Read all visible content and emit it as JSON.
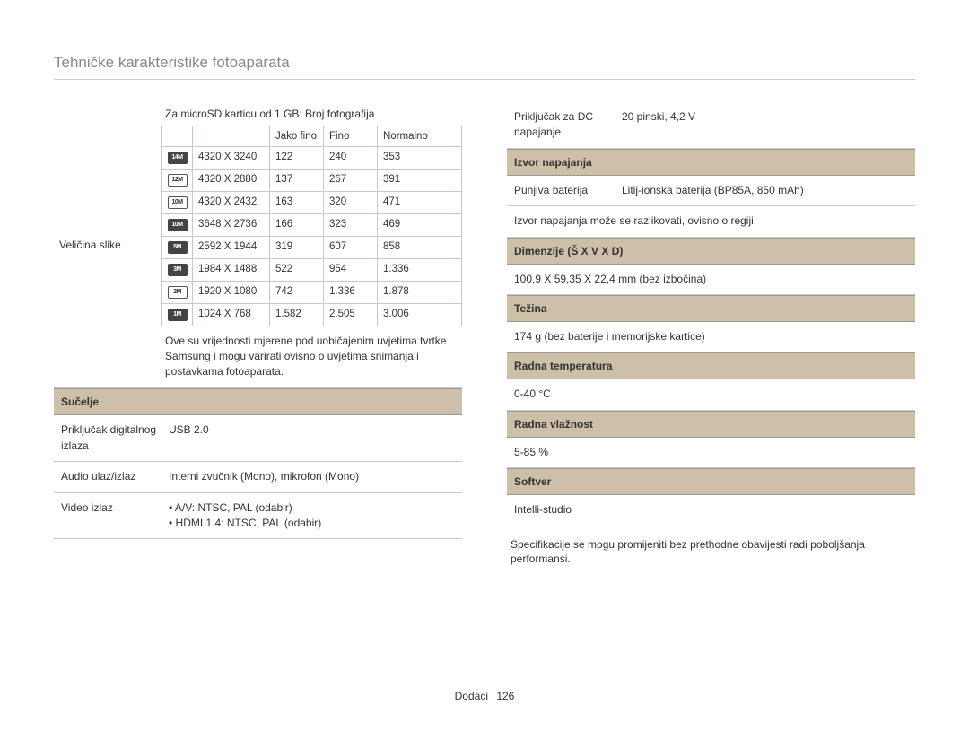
{
  "page": {
    "title": "Tehničke karakteristike fotoaparata",
    "footer_label": "Dodaci",
    "footer_page": "126"
  },
  "left": {
    "image_size_label": "Veličina slike",
    "inner_caption": "Za microSD karticu od 1 GB: Broj fotografija",
    "inner_headers": {
      "c1": "",
      "c2": "",
      "c3": "Jako fino",
      "c4": "Fino",
      "c5": "Normalno"
    },
    "inner_rows": [
      {
        "icon": "14M",
        "icon_style": "black",
        "res": "4320 X 3240",
        "v1": "122",
        "v2": "240",
        "v3": "353"
      },
      {
        "icon": "12M",
        "icon_style": "",
        "res": "4320 X 2880",
        "v1": "137",
        "v2": "267",
        "v3": "391"
      },
      {
        "icon": "10M",
        "icon_style": "",
        "res": "4320 X 2432",
        "v1": "163",
        "v2": "320",
        "v3": "471"
      },
      {
        "icon": "10M",
        "icon_style": "black",
        "res": "3648 X 2736",
        "v1": "166",
        "v2": "323",
        "v3": "469"
      },
      {
        "icon": "5M",
        "icon_style": "black",
        "res": "2592 X 1944",
        "v1": "319",
        "v2": "607",
        "v3": "858"
      },
      {
        "icon": "3M",
        "icon_style": "black",
        "res": "1984 X 1488",
        "v1": "522",
        "v2": "954",
        "v3": "1.336"
      },
      {
        "icon": "2M",
        "icon_style": "",
        "res": "1920 X 1080",
        "v1": "742",
        "v2": "1.336",
        "v3": "1.878"
      },
      {
        "icon": "1M",
        "icon_style": "black",
        "res": "1024 X 768",
        "v1": "1.582",
        "v2": "2.505",
        "v3": "3.006"
      }
    ],
    "inner_footnote": "Ove su vrijednosti mjerene pod uobičajenim uvjetima tvrtke Samsung i mogu varirati ovisno o uvjetima snimanja i postavkama fotoaparata.",
    "section_interface": "Sučelje",
    "rows": {
      "digital_out_k": "Priključak digitalnog izlaza",
      "digital_out_v": "USB 2.0",
      "audio_k": "Audio ulaz/izlaz",
      "audio_v": "Interni zvučnik (Mono), mikrofon (Mono)",
      "video_k": "Video izlaz",
      "video_v1": "A/V: NTSC, PAL (odabir)",
      "video_v2": "HDMI 1.4: NTSC, PAL (odabir)"
    }
  },
  "right": {
    "dc_k": "Priključak za DC napajanje",
    "dc_v": "20 pinski, 4,2 V",
    "sec_power": "Izvor napajanja",
    "bat_k": "Punjiva baterija",
    "bat_v": "Litij-ionska baterija (BP85A, 850 mAh)",
    "power_note": "Izvor napajanja može se razlikovati, ovisno o regiji.",
    "sec_dim": "Dimenzije (Š X V X D)",
    "dim_v": "100,9 X 59,35 X 22,4 mm (bez izbočina)",
    "sec_weight": "Težina",
    "weight_v": "174 g (bez baterije i memorijske kartice)",
    "sec_temp": "Radna temperatura",
    "temp_v": "0-40 °C",
    "sec_hum": "Radna vlažnost",
    "hum_v": "5-85 %",
    "sec_soft": "Softver",
    "soft_v": "Intelli-studio",
    "bottom_note": "Specifikacije se mogu promijeniti bez prethodne obavijesti radi poboljšanja performansi."
  },
  "style": {
    "header_bg": "#cdbfa8",
    "border_color": "#cccccc",
    "inner_border": "#d9c2c2"
  }
}
